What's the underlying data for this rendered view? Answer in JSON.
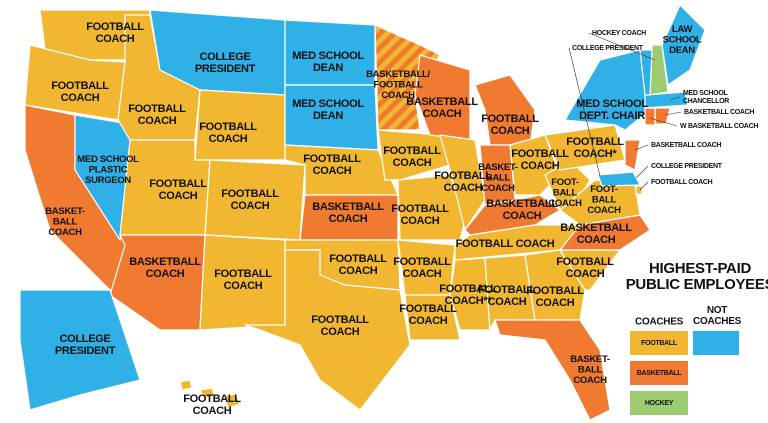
{
  "title_lines": [
    "HIGHEST-PAID",
    "PUBLIC EMPLOYEES"
  ],
  "legend": {
    "coaches": "COACHES",
    "not_coaches_lines": [
      "NOT",
      "COACHES"
    ],
    "not_color": "#2fb0e7",
    "items": [
      {
        "label": "FOOTBALL",
        "color": "#f2b731"
      },
      {
        "label": "BASKETBALL",
        "color": "#ef7a30"
      },
      {
        "label": "HOCKEY",
        "color": "#9dcb6f"
      }
    ]
  },
  "states": [
    {
      "lines": [
        "FOOTBALL",
        "COACH"
      ],
      "color": "#f2b731"
    },
    {
      "lines": [
        "FOOTBALL",
        "COACH"
      ],
      "color": "#f2b731"
    },
    {
      "lines": [
        "BASKET-",
        "BALL",
        "COACH"
      ],
      "color": "#ef7a30"
    },
    {
      "lines": [
        "MED SCHOOL",
        "PLASTIC",
        "SURGEON"
      ],
      "color": "#2fb0e7"
    },
    {
      "lines": [
        "FOOTBALL",
        "COACH"
      ],
      "color": "#f2b731"
    },
    {
      "lines": [
        "COLLEGE",
        "PRESIDENT"
      ],
      "color": "#2fb0e7"
    },
    {
      "lines": [
        "FOOTBALL",
        "COACH"
      ],
      "color": "#f2b731"
    },
    {
      "lines": [
        "FOOTBALL",
        "COACH"
      ],
      "color": "#f2b731"
    },
    {
      "lines": [
        "FOOTBALL",
        "COACH"
      ],
      "color": "#f2b731"
    },
    {
      "lines": [
        "BASKETBALL",
        "COACH"
      ],
      "color": "#ef7a30"
    },
    {
      "lines": [
        "FOOTBALL",
        "COACH"
      ],
      "color": "#f2b731"
    },
    {
      "lines": [
        "MED SCHOOL",
        "DEAN"
      ],
      "color": "#2fb0e7"
    },
    {
      "lines": [
        "MED SCHOOL",
        "DEAN"
      ],
      "color": "#2fb0e7"
    },
    {
      "lines": [
        "FOOTBALL",
        "COACH"
      ],
      "color": "#f2b731"
    },
    {
      "lines": [
        "BASKETBALL",
        "COACH"
      ],
      "color": "#ef7a30"
    },
    {
      "lines": [
        "FOOTBALL",
        "COACH"
      ],
      "color": "#f2b731"
    },
    {
      "lines": [
        "FOOTBALL",
        "COACH"
      ],
      "color": "#f2b731"
    },
    {
      "lines": [
        "BASKETBALL/",
        "FOOTBALL",
        "COACH"
      ],
      "color": "#ef7a30",
      "stripe": "#f2b731"
    },
    {
      "lines": [
        "FOOTBALL",
        "COACH"
      ],
      "color": "#f2b731"
    },
    {
      "lines": [
        "FOOTBALL",
        "COACH"
      ],
      "color": "#f2b731"
    },
    {
      "lines": [
        "FOOTBALL",
        "COACH"
      ],
      "color": "#f2b731"
    },
    {
      "lines": [
        "FOOTBALL",
        "COACH"
      ],
      "color": "#f2b731"
    },
    {
      "lines": [
        "BASKETBALL",
        "COACH"
      ],
      "color": "#ef7a30"
    },
    {
      "lines": [
        "FOOTBALL",
        "COACH"
      ],
      "color": "#f2b731"
    },
    {
      "lines": [
        "FOOTBALL",
        "COACH"
      ],
      "color": "#ef7a30"
    },
    {
      "lines": [
        "BASKET-",
        "BALL",
        "COACH"
      ],
      "color": "#ef7a30"
    },
    {
      "lines": [
        "FOOTBALL",
        "COACH"
      ],
      "color": "#f2b731"
    },
    {
      "lines": [
        "BASKETBALL",
        "COACH"
      ],
      "color": "#ef7a30"
    },
    {
      "lines": [
        "FOOTBALL COACH"
      ],
      "color": "#f2b731"
    },
    {
      "lines": [
        "FOOTBALL",
        "COACH**"
      ],
      "color": "#f2b731"
    },
    {
      "lines": [
        "FOOTBALL",
        "COACH"
      ],
      "color": "#f2b731"
    },
    {
      "lines": [
        "FOOTBALL",
        "COACH"
      ],
      "color": "#f2b731"
    },
    {
      "lines": [
        "BASKET-",
        "BALL",
        "COACH"
      ],
      "color": "#ef7a30"
    },
    {
      "lines": [
        "FOOTBALL",
        "COACH"
      ],
      "color": "#f2b731"
    },
    {
      "lines": [
        "BASKETBALL",
        "COACH"
      ],
      "color": "#ef7a30"
    },
    {
      "lines": [
        "FOOT-",
        "BALL",
        "COACH"
      ],
      "color": "#f2b731"
    },
    {
      "lines": [
        "FOOT-",
        "BALL",
        "COACH"
      ],
      "color": "#f2b731"
    },
    {
      "lines": [
        "FOOTBALL",
        "COACH*"
      ],
      "color": "#f2b731"
    },
    {
      "lines": [
        "MED SCHOOL",
        "DEPT. CHAIR"
      ],
      "color": "#2fb0e7"
    },
    {
      "lines": [
        "LAW",
        "SCHOOL",
        "DEAN"
      ],
      "color": "#2fb0e7"
    },
    {
      "lines": [
        "COLLEGE",
        "PRESIDENT"
      ],
      "color": "#2fb0e7"
    },
    {
      "lines": [
        "FOOTBALL",
        "COACH"
      ],
      "color": "#f2b731"
    }
  ],
  "small_states": [
    {
      "label_lines": [
        "COLLEGE PRESIDENT"
      ],
      "color": "#2fb0e7"
    },
    {
      "label_lines": [
        "HOCKEY COACH"
      ],
      "color": "#9dcb6f"
    },
    {
      "label_lines": [
        "MED SCHOOL",
        "CHANCELLOR"
      ],
      "color": "#2fb0e7"
    },
    {
      "label_lines": [
        "BASKETBALL  COACH"
      ],
      "color": "#ef7a30"
    },
    {
      "label_lines": [
        "W  BASKETBALL COACH"
      ],
      "color": "#ef7a30"
    },
    {
      "label_lines": [
        "BASKETBALL COACH"
      ],
      "color": "#ef7a30"
    },
    {
      "label_lines": [
        "COLLEGE PRESIDENT"
      ],
      "color": "#2fb0e7"
    },
    {
      "label_lines": [
        "FOOTBALL COACH"
      ],
      "color": "#f2b731"
    }
  ]
}
